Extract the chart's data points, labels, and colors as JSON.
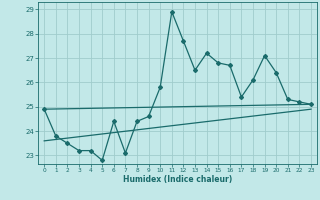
{
  "xlabel": "Humidex (Indice chaleur)",
  "ylabel": "",
  "background_color": "#c2e8e8",
  "grid_color": "#a0cccc",
  "line_color": "#1a6b6b",
  "x_values": [
    0,
    1,
    2,
    3,
    4,
    5,
    6,
    7,
    8,
    9,
    10,
    11,
    12,
    13,
    14,
    15,
    16,
    17,
    18,
    19,
    20,
    21,
    22,
    23
  ],
  "y_values": [
    24.9,
    23.8,
    23.5,
    23.2,
    23.2,
    22.8,
    24.4,
    23.1,
    24.4,
    24.6,
    25.8,
    28.9,
    27.7,
    26.5,
    27.2,
    26.8,
    26.7,
    25.4,
    26.1,
    27.1,
    26.4,
    25.3,
    25.2,
    25.1
  ],
  "upper_line": [
    [
      0,
      24.9
    ],
    [
      23,
      25.1
    ]
  ],
  "lower_line": [
    [
      0,
      23.6
    ],
    [
      23,
      24.9
    ]
  ],
  "xlim": [
    -0.5,
    23.5
  ],
  "ylim": [
    22.65,
    29.3
  ],
  "yticks": [
    23,
    24,
    25,
    26,
    27,
    28,
    29
  ],
  "xticks": [
    0,
    1,
    2,
    3,
    4,
    5,
    6,
    7,
    8,
    9,
    10,
    11,
    12,
    13,
    14,
    15,
    16,
    17,
    18,
    19,
    20,
    21,
    22,
    23
  ]
}
